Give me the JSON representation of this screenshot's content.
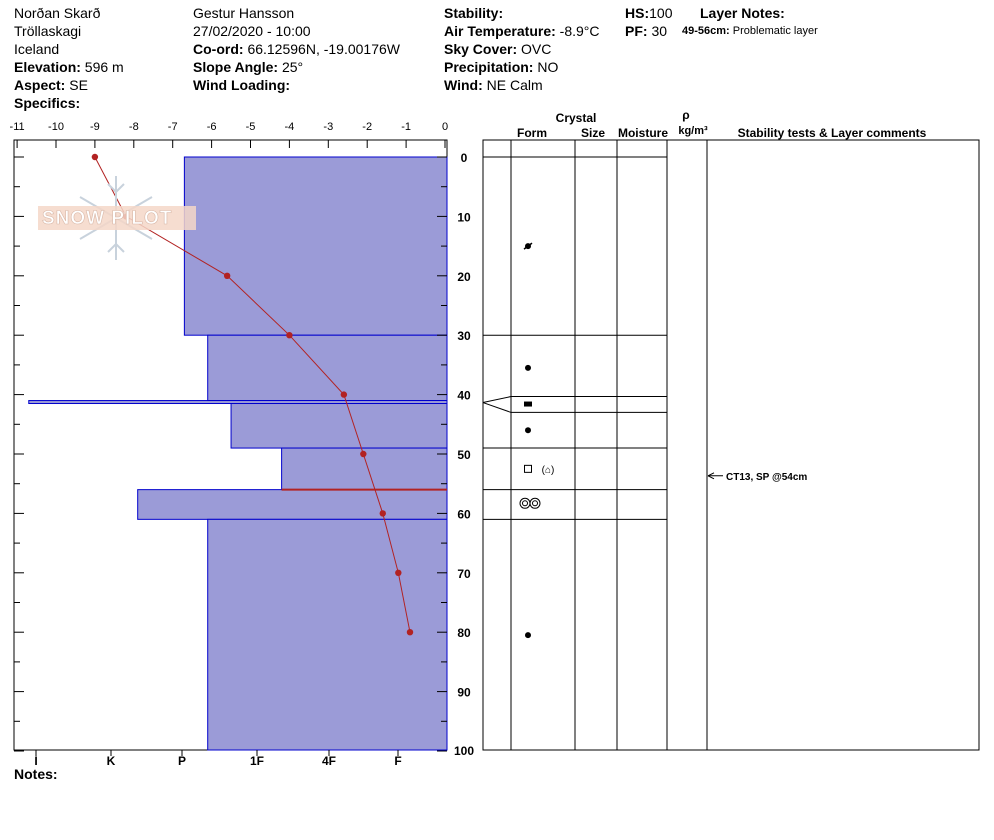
{
  "header": {
    "col1": {
      "location": "Norðan Skarð",
      "region": "Tröllaskagi",
      "country": "Iceland",
      "elevation_label": "Elevation:",
      "elevation_value": "596 m",
      "aspect_label": "Aspect:",
      "aspect_value": "SE",
      "specifics_label": "Specifics:"
    },
    "col2": {
      "observer": "Gestur Hansson",
      "datetime": "27/02/2020 - 10:00",
      "coord_label": "Co-ord:",
      "coord_value": "66.12596N, -19.00176W",
      "slope_label": "Slope Angle:",
      "slope_value": "25°",
      "wind_loading_label": "Wind Loading:"
    },
    "col3": {
      "stability_label": "Stability:",
      "air_temp_label": "Air Temperature:",
      "air_temp_value": "-8.9°C",
      "sky_label": "Sky Cover:",
      "sky_value": "OVC",
      "precip_label": "Precipitation:",
      "precip_value": "NO",
      "wind_label": "Wind:",
      "wind_value": "NE Calm"
    },
    "col4": {
      "hs_label": "HS:",
      "hs_value": "100",
      "pf_label": "PF:",
      "pf_value": "30",
      "layer_notes_label": "Layer Notes:",
      "layer_note_range": "49-56cm:",
      "layer_note_text": "Problematic layer"
    }
  },
  "notes_label": "Notes:",
  "watermark": {
    "text": "SNOW PILOT",
    "icon": "snowflake-icon"
  },
  "table_headers": {
    "crystal": "Crystal",
    "form": "Form",
    "size": "Size",
    "moisture": "Moisture",
    "rho": "ρ",
    "density_unit": "kg/m³",
    "stability": "Stability tests & Layer comments"
  },
  "stability_test": {
    "text": "CT13, SP @54cm",
    "depth": 54
  },
  "colors": {
    "hardness_fill": "#9b9bd7",
    "hardness_edge": "#0000cc",
    "temp_line": "#b22222",
    "problem_line": "#b22222"
  },
  "chart_data": {
    "type": "snow-profile",
    "temperature_axis": {
      "ticks": [
        "-11",
        "-10",
        "-9",
        "-8",
        "-7",
        "-6",
        "-5",
        "-4",
        "-3",
        "-2",
        "-1",
        "0"
      ],
      "range": [
        -11,
        0
      ]
    },
    "depth_axis": {
      "ticks": [
        "0",
        "10",
        "20",
        "30",
        "40",
        "50",
        "60",
        "70",
        "80",
        "90",
        "100"
      ],
      "range": [
        0,
        100
      ]
    },
    "hardness_axis": {
      "labels": [
        "I",
        "K",
        "P",
        "1F",
        "4F",
        "F"
      ]
    },
    "temperature_profile": [
      {
        "depth": 0,
        "temp": -9.0
      },
      {
        "depth": 10,
        "temp": -8.2
      },
      {
        "depth": 20,
        "temp": -5.6
      },
      {
        "depth": 30,
        "temp": -4.0
      },
      {
        "depth": 40,
        "temp": -2.6
      },
      {
        "depth": 50,
        "temp": -2.1
      },
      {
        "depth": 60,
        "temp": -1.6
      },
      {
        "depth": 70,
        "temp": -1.2
      },
      {
        "depth": 80,
        "temp": -0.9
      }
    ],
    "layers": [
      {
        "top": 0,
        "bottom": 30,
        "hardness_extent": 6.7,
        "grain": "rounding-facets"
      },
      {
        "top": 30,
        "bottom": 41,
        "hardness_extent": 6.1,
        "grain": "round"
      },
      {
        "top": 41,
        "bottom": 41.5,
        "hardness_extent": 10.7,
        "grain": "crust"
      },
      {
        "top": 41.5,
        "bottom": 49,
        "hardness_extent": 5.5,
        "grain": "round"
      },
      {
        "top": 49,
        "bottom": 56,
        "hardness_extent": 4.2,
        "grain": "faceted"
      },
      {
        "top": 56,
        "bottom": 61,
        "hardness_extent": 7.9,
        "grain": "surface-hoar-like"
      },
      {
        "top": 61,
        "bottom": 100,
        "hardness_extent": 6.1,
        "grain": "round"
      }
    ],
    "problem_layer_depth": 56
  }
}
